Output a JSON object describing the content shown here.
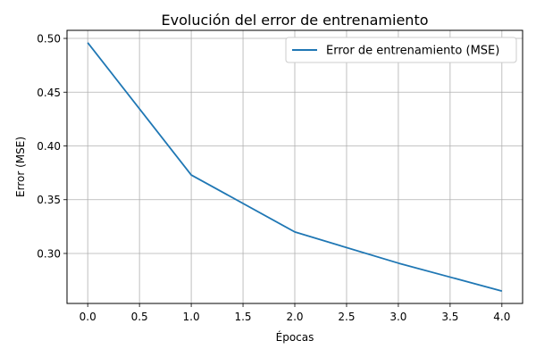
{
  "chart_data": {
    "type": "line",
    "title": "Evolución del error de entrenamiento",
    "xlabel": "Épocas",
    "ylabel": "Error (MSE)",
    "xlim": [
      -0.2,
      4.2
    ],
    "ylim": [
      0.2535,
      0.5075
    ],
    "xticks": [
      0.0,
      0.5,
      1.0,
      1.5,
      2.0,
      2.5,
      3.0,
      3.5,
      4.0
    ],
    "xtick_labels": [
      "0.0",
      "0.5",
      "1.0",
      "1.5",
      "2.0",
      "2.5",
      "3.0",
      "3.5",
      "4.0"
    ],
    "yticks": [
      0.3,
      0.35,
      0.4,
      0.45,
      0.5
    ],
    "ytick_labels": [
      "0.30",
      "0.35",
      "0.40",
      "0.45",
      "0.50"
    ],
    "grid": true,
    "legend_position": "top-right",
    "series": [
      {
        "name": "Error de entrenamiento (MSE)",
        "color": "#1f77b4",
        "x": [
          0,
          1,
          2,
          3,
          4
        ],
        "y": [
          0.496,
          0.373,
          0.32,
          0.291,
          0.265
        ]
      }
    ]
  }
}
